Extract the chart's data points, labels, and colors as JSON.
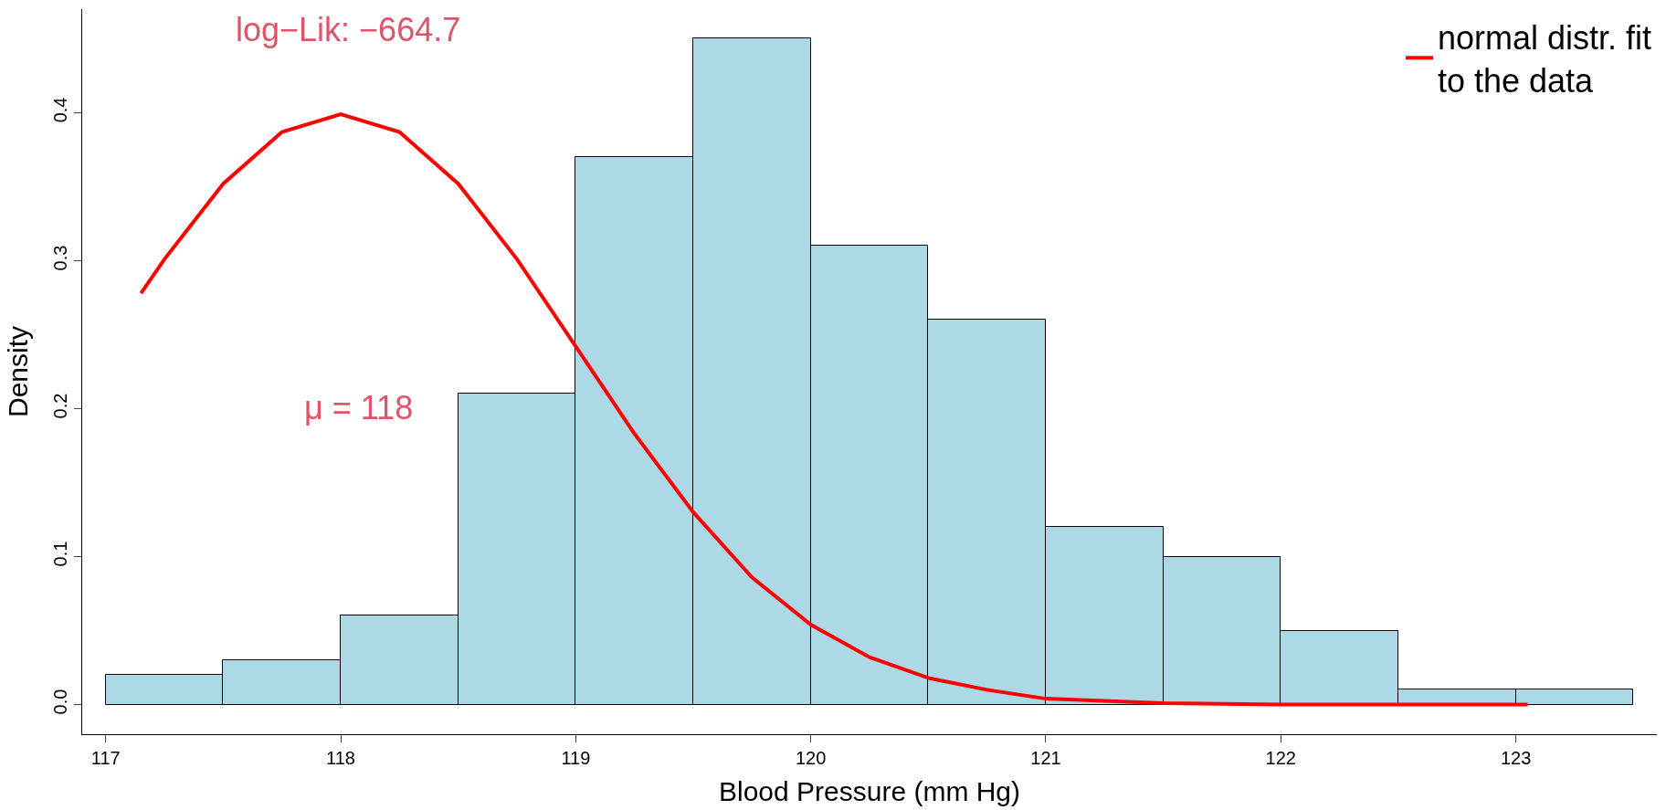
{
  "chart_data": {
    "type": "histogram",
    "xlabel": "Blood Pressure (mm Hg)",
    "ylabel": "Density",
    "bins": [
      117,
      117.5,
      118,
      118.5,
      119,
      119.5,
      120,
      120.5,
      121,
      121.5,
      122,
      122.5,
      123,
      123.5
    ],
    "values": [
      0.02,
      0.03,
      0.06,
      0.21,
      0.37,
      0.45,
      0.31,
      0.26,
      0.12,
      0.1,
      0.05,
      0.01,
      0.01
    ],
    "color": "#add8e6",
    "series": [
      {
        "type": "line",
        "name": "normal distr. fit\nto the data",
        "color": "#ff0000",
        "x": [
          117.15,
          117.25,
          117.5,
          117.75,
          118,
          118.25,
          118.5,
          118.75,
          119,
          119.25,
          119.5,
          119.75,
          120,
          120.25,
          120.5,
          120.75,
          121,
          121.5,
          122,
          122.5,
          123.05
        ],
        "values": [
          0.278,
          0.301,
          0.352,
          0.387,
          0.399,
          0.387,
          0.352,
          0.301,
          0.242,
          0.183,
          0.13,
          0.086,
          0.054,
          0.032,
          0.018,
          0.01,
          0.004,
          0.001,
          0,
          0,
          0
        ]
      }
    ],
    "annotations": [
      "log−Lik: −664.7",
      "μ = 118"
    ],
    "xlim": [
      116.9,
      123.6
    ],
    "ylim": [
      -0.02,
      0.47
    ],
    "xticks": [
      117,
      118,
      119,
      120,
      121,
      122,
      123
    ],
    "yticks": [
      {
        "value": 0,
        "label": "0.0"
      },
      0.1,
      0.2,
      0.3,
      0.4
    ],
    "legend": "top right"
  }
}
